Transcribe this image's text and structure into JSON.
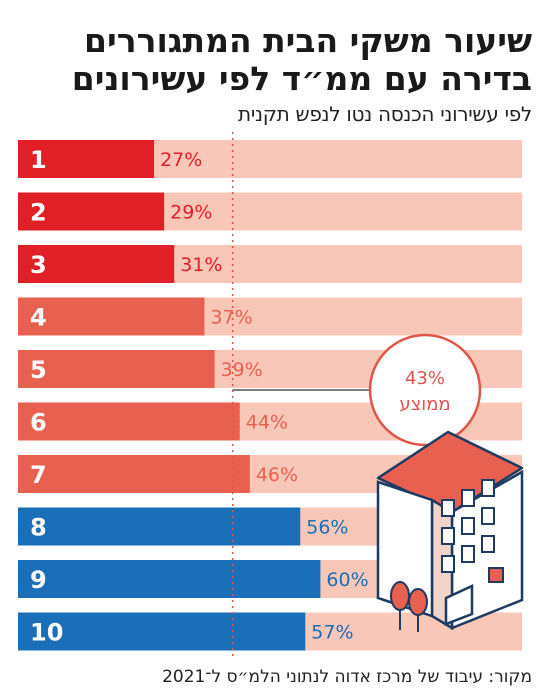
{
  "header": {
    "title": "שיעור משקי הבית המתגוררים בדירה עם ממ״ד לפי עשירונים",
    "subtitle": "לפי עשירוני הכנסה נטו לנפש תקנית"
  },
  "footer": {
    "source": "מקור: עיבוד של מרכז אדוה לנתוני הלמ״ס ל־2021"
  },
  "colors": {
    "background_band": "#f8c7b7",
    "low_deciles": "#e01f26",
    "mid_deciles": "#e8604f",
    "high_deciles": "#1a6fb8",
    "average_line": "#e0554a"
  },
  "average": {
    "value_label": "43%",
    "label": "ממוצע",
    "value": 43
  },
  "chart_data": {
    "type": "bar",
    "orientation": "horizontal",
    "categories": [
      "1",
      "2",
      "3",
      "4",
      "5",
      "6",
      "7",
      "8",
      "9",
      "10"
    ],
    "values": [
      27,
      29,
      31,
      37,
      39,
      44,
      46,
      56,
      60,
      57
    ],
    "value_labels": [
      "27%",
      "29%",
      "31%",
      "37%",
      "39%",
      "44%",
      "46%",
      "56%",
      "60%",
      "57%"
    ],
    "groups": [
      "low",
      "low",
      "low",
      "mid",
      "mid",
      "mid",
      "mid",
      "high",
      "high",
      "high"
    ],
    "xlim": [
      0,
      100
    ],
    "average_line": 43
  }
}
